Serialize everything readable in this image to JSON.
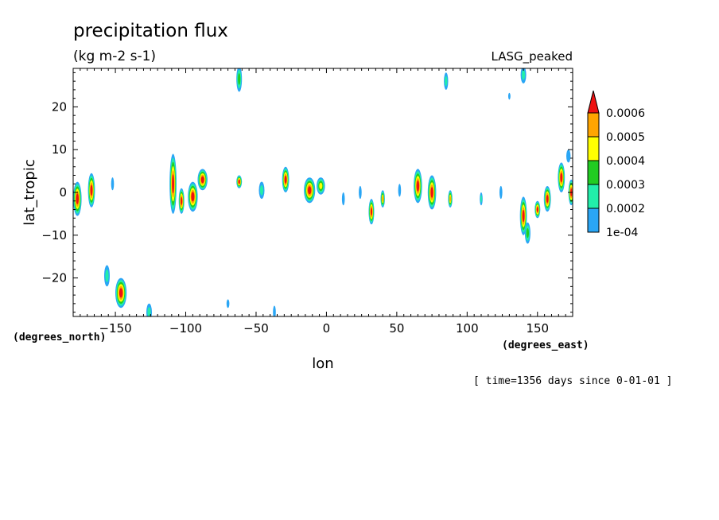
{
  "chart_data": {
    "type": "heatmap",
    "title": "precipitation flux",
    "units": "(kg m-2 s-1)",
    "model": "LASG_peaked",
    "xlabel": "lon",
    "ylabel": "lat_tropic",
    "x_units": "(degrees_east)",
    "y_units": "(degrees_north)",
    "footer": "[ time=1356 days since 0-01-01 ]",
    "xlim": [
      -180,
      175
    ],
    "ylim": [
      -29,
      29
    ],
    "xticks": [
      -150,
      -100,
      -50,
      0,
      50,
      100,
      150
    ],
    "yticks": [
      -20,
      -10,
      0,
      10,
      20
    ],
    "grid": false,
    "legend_position": "right",
    "levels": [
      0.0001,
      0.0002,
      0.0003,
      0.0004,
      0.0005,
      0.0006
    ],
    "level_labels": [
      "1e-04",
      "0.0002",
      "0.0003",
      "0.0004",
      "0.0005",
      "0.0006"
    ],
    "colors": [
      "#2aa6f5",
      "#22eeaa",
      "#22cc22",
      "#ffff00",
      "#ffa500",
      "#ee1111"
    ],
    "cells": [
      {
        "lon": -177,
        "lat": -1.5,
        "sx": 3,
        "sy": 4,
        "peak": 6
      },
      {
        "lon": -167,
        "lat": 0.5,
        "sx": 2.5,
        "sy": 4,
        "peak": 6
      },
      {
        "lon": -152,
        "lat": 2,
        "sx": 1,
        "sy": 1.5,
        "peak": 1
      },
      {
        "lon": -146,
        "lat": -23.5,
        "sx": 4,
        "sy": 3.5,
        "peak": 6
      },
      {
        "lon": -156,
        "lat": -19.5,
        "sx": 2,
        "sy": 2.5,
        "peak": 2
      },
      {
        "lon": -126,
        "lat": -28,
        "sx": 2,
        "sy": 2,
        "peak": 2
      },
      {
        "lon": -109,
        "lat": 2,
        "sx": 2.5,
        "sy": 7,
        "peak": 6
      },
      {
        "lon": -103,
        "lat": -2,
        "sx": 2,
        "sy": 3,
        "peak": 6
      },
      {
        "lon": -95,
        "lat": -1,
        "sx": 3.5,
        "sy": 3.5,
        "peak": 6
      },
      {
        "lon": -88,
        "lat": 3,
        "sx": 3.5,
        "sy": 2.5,
        "peak": 6
      },
      {
        "lon": -62,
        "lat": 2.5,
        "sx": 2,
        "sy": 1.5,
        "peak": 6
      },
      {
        "lon": -62,
        "lat": 26.5,
        "sx": 2,
        "sy": 3,
        "peak": 3
      },
      {
        "lon": -46,
        "lat": 0.5,
        "sx": 2,
        "sy": 2,
        "peak": 2
      },
      {
        "lon": -29,
        "lat": 3,
        "sx": 2.5,
        "sy": 3,
        "peak": 6
      },
      {
        "lon": -37,
        "lat": -28,
        "sx": 1,
        "sy": 1.5,
        "peak": 1
      },
      {
        "lon": -70,
        "lat": -26,
        "sx": 1,
        "sy": 1,
        "peak": 1
      },
      {
        "lon": -12,
        "lat": 0.5,
        "sx": 4,
        "sy": 3,
        "peak": 6
      },
      {
        "lon": -4,
        "lat": 1.5,
        "sx": 3,
        "sy": 2,
        "peak": 4
      },
      {
        "lon": 12,
        "lat": -1.5,
        "sx": 1,
        "sy": 1.5,
        "peak": 1
      },
      {
        "lon": 24,
        "lat": 0,
        "sx": 1,
        "sy": 1.5,
        "peak": 1
      },
      {
        "lon": 32,
        "lat": -4.5,
        "sx": 2,
        "sy": 3,
        "peak": 6
      },
      {
        "lon": 40,
        "lat": -1.5,
        "sx": 1.5,
        "sy": 2,
        "peak": 5
      },
      {
        "lon": 52,
        "lat": 0.5,
        "sx": 1,
        "sy": 1.5,
        "peak": 1
      },
      {
        "lon": 65,
        "lat": 1.5,
        "sx": 3,
        "sy": 4,
        "peak": 6
      },
      {
        "lon": 75,
        "lat": 0,
        "sx": 3,
        "sy": 4,
        "peak": 6
      },
      {
        "lon": 88,
        "lat": -1.5,
        "sx": 1.5,
        "sy": 2,
        "peak": 5
      },
      {
        "lon": 110,
        "lat": -1.5,
        "sx": 1,
        "sy": 1.5,
        "peak": 2
      },
      {
        "lon": 124,
        "lat": 0,
        "sx": 1,
        "sy": 1.5,
        "peak": 1
      },
      {
        "lon": 140,
        "lat": -5.5,
        "sx": 2.5,
        "sy": 4.5,
        "peak": 6
      },
      {
        "lon": 143,
        "lat": -9.5,
        "sx": 2,
        "sy": 2.5,
        "peak": 3
      },
      {
        "lon": 150,
        "lat": -4,
        "sx": 2,
        "sy": 2,
        "peak": 6
      },
      {
        "lon": 157,
        "lat": -1.5,
        "sx": 2.5,
        "sy": 3,
        "peak": 6
      },
      {
        "lon": 167,
        "lat": 3.5,
        "sx": 2.5,
        "sy": 3.5,
        "peak": 6
      },
      {
        "lon": 174,
        "lat": 0,
        "sx": 2,
        "sy": 3,
        "peak": 6
      },
      {
        "lon": 85,
        "lat": 26,
        "sx": 1.5,
        "sy": 2,
        "peak": 2
      },
      {
        "lon": 140,
        "lat": 27.5,
        "sx": 2,
        "sy": 2,
        "peak": 2
      },
      {
        "lon": 130,
        "lat": 22.5,
        "sx": 0.8,
        "sy": 0.8,
        "peak": 1
      },
      {
        "lon": 172,
        "lat": 8.5,
        "sx": 1.5,
        "sy": 1.5,
        "peak": 1
      }
    ]
  }
}
